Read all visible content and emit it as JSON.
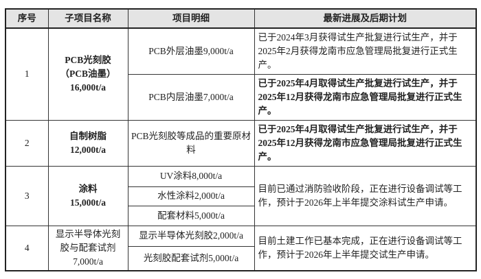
{
  "header": [
    "序号",
    "子项目名称",
    "项目明细",
    "最新进展及后期计划"
  ],
  "rows": [
    {
      "no": "1",
      "name_lines": [
        "PCB光刻胶",
        "（PCB油墨）",
        "16,000t/a"
      ],
      "details": [
        "PCB外层油墨9,000t/a",
        "PCB内层油墨7,000t/a"
      ],
      "progress": [
        "已于2024年3月获得试生产批复进行试生产，并于2025年2月获得龙南市应急管理局批复进行正式生产。",
        "已于2025年4月取得试生产批复进行试生产，并于2025年12月获得龙南市应急管理局批复进行正式生产。"
      ]
    },
    {
      "no": "2",
      "name_lines": [
        "自制树脂",
        "12,000t/a"
      ],
      "details": [
        "PCB光刻胶等成品的重要原材料"
      ],
      "progress": [
        "已于2025年4月取得试生产批复进行试生产，并于2025年12月获得龙南市应急管理局批复进行正式生产。"
      ]
    },
    {
      "no": "3",
      "name_lines": [
        "涂料",
        "15,000t/a"
      ],
      "details": [
        "UV涂料8,000t/a",
        "水性涂料2,000t/a",
        "配套材料5,000t/a"
      ],
      "progress": [
        "目前已通过消防验收阶段，正在进行设备调试等工作，预计于2026年上半年提交涂料试生产申请。"
      ]
    },
    {
      "no": "4",
      "name_lines": [
        "显示半导体光刻",
        "胶与配套试剂",
        "7,000t/a"
      ],
      "details": [
        "显示半导体光刻胶2,000t/a",
        "光刻胶配套试剂5,000t/a"
      ],
      "progress": [
        "目前土建工作已基本完成，正在进行设备调试等工作，预计于2026年上半年提交试生产申请。"
      ]
    }
  ]
}
